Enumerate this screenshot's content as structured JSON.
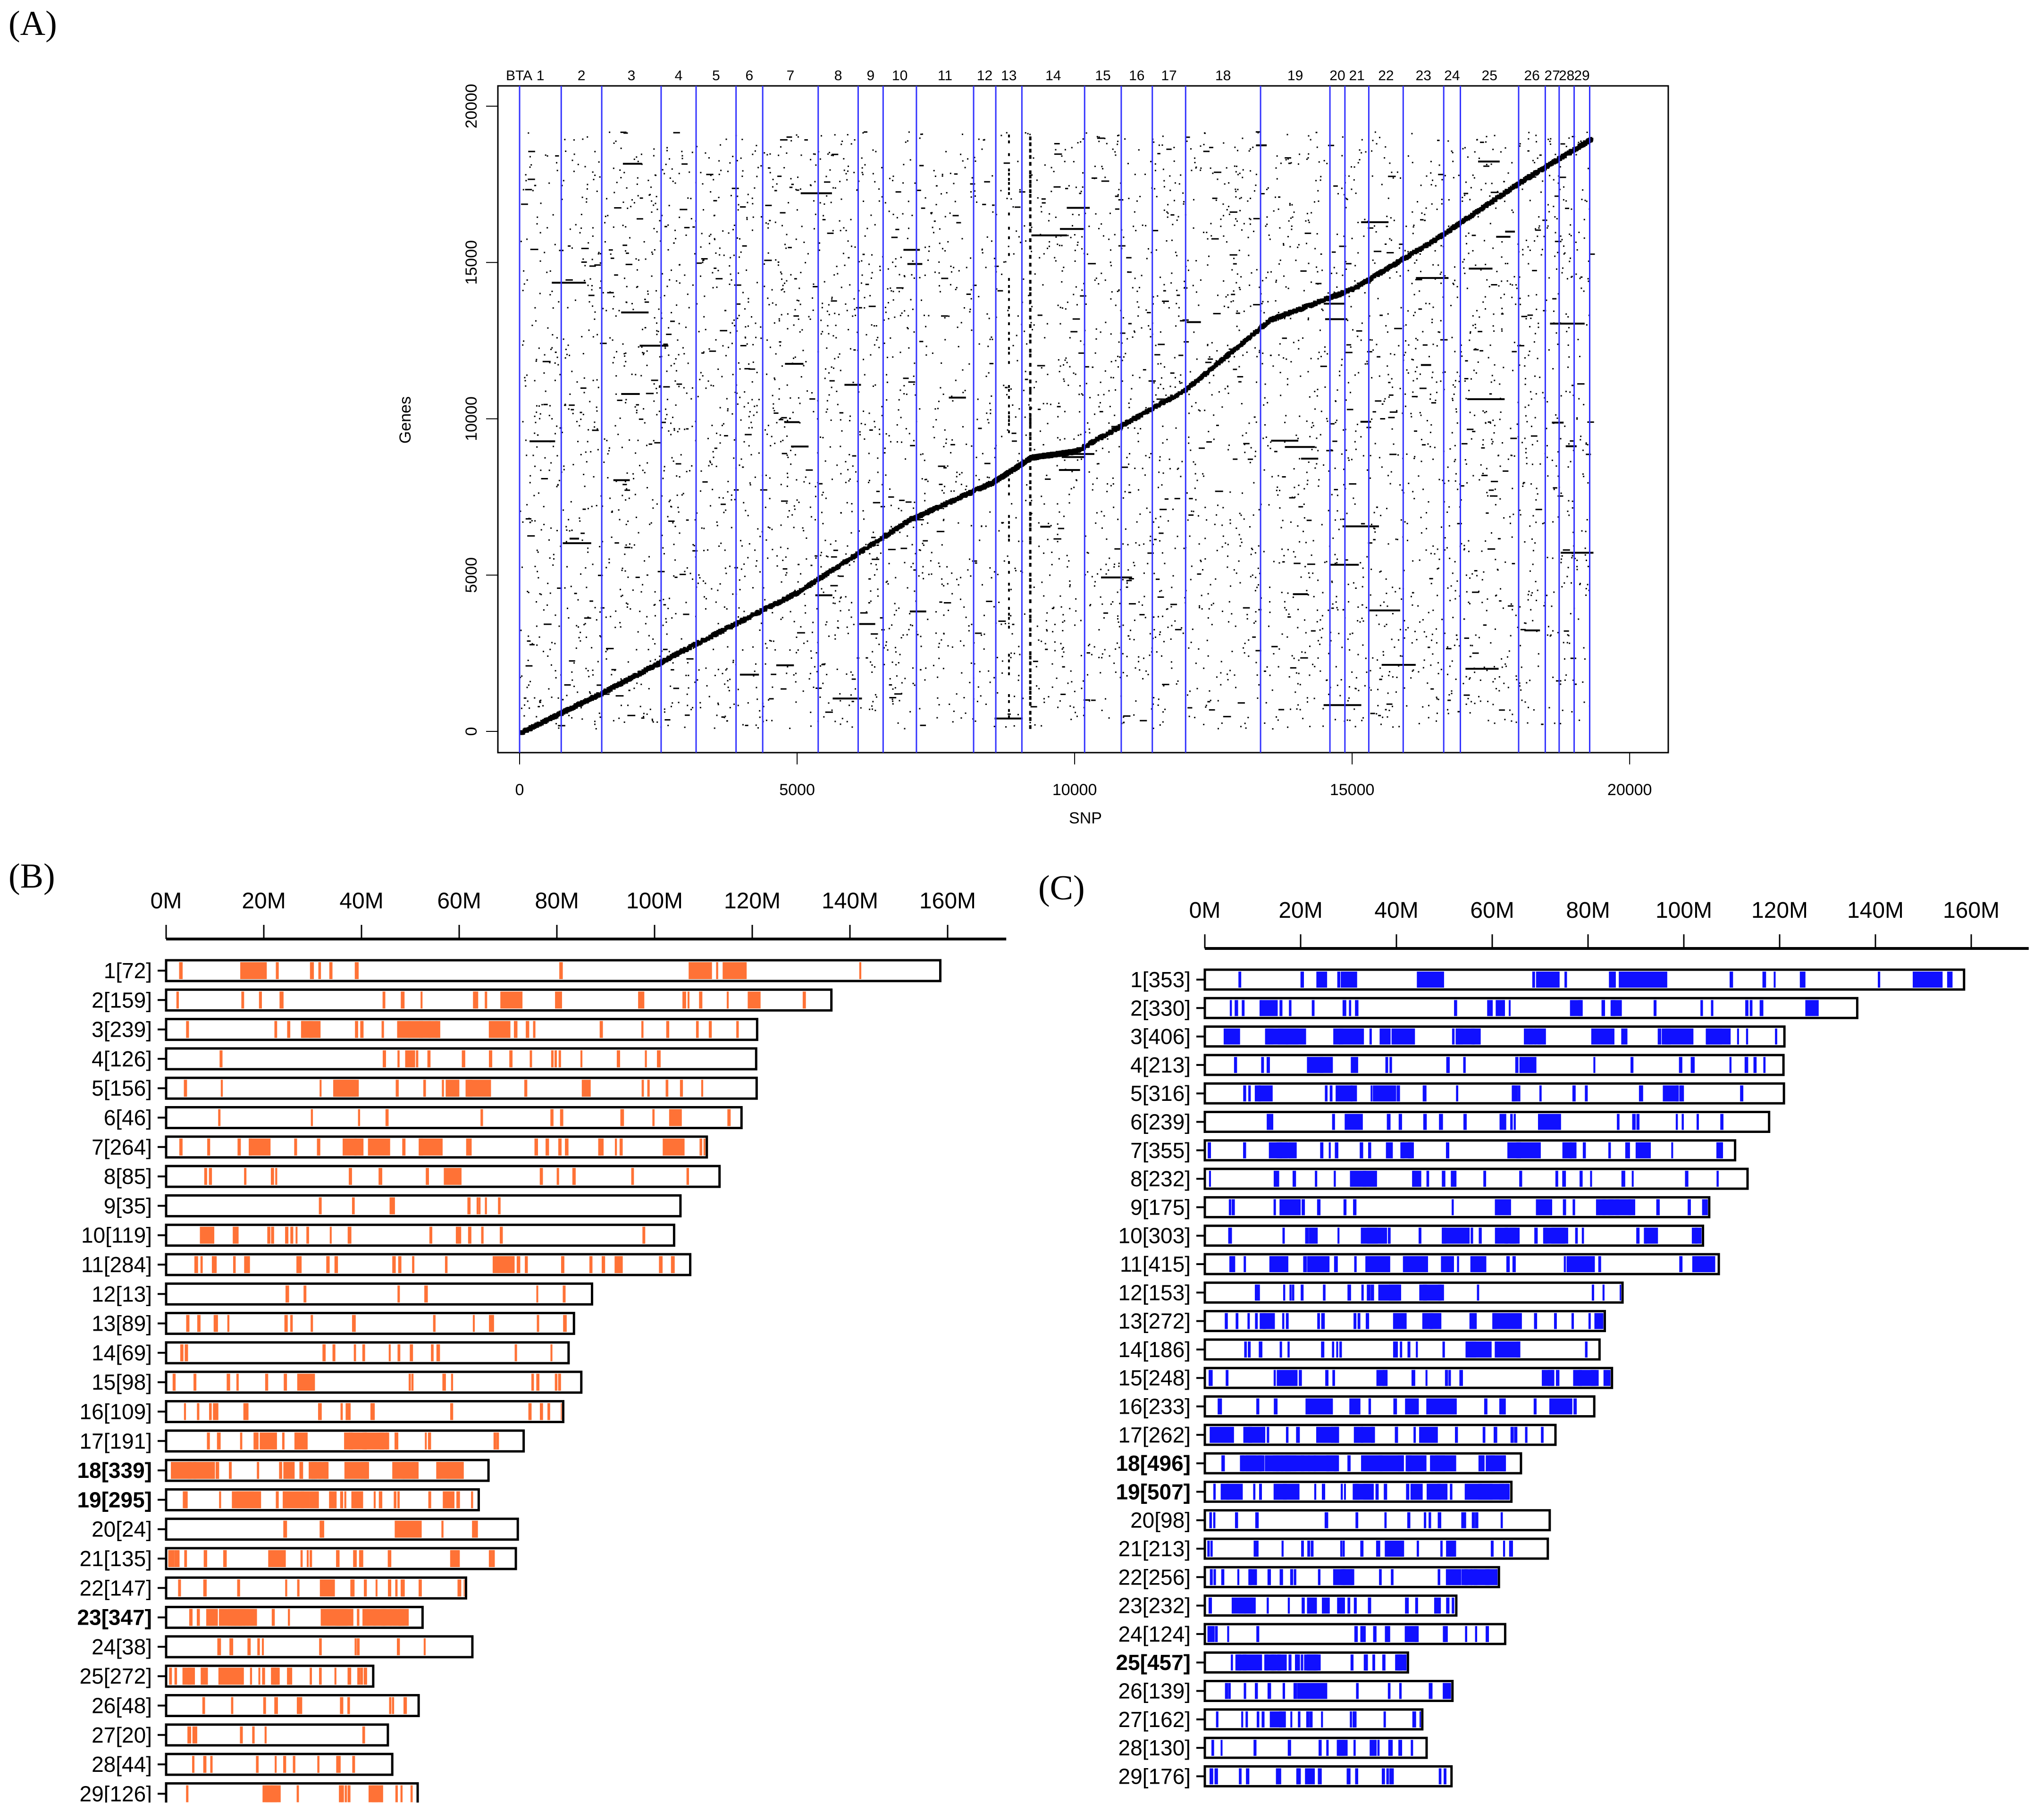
{
  "panels": {
    "A": {
      "label": "(A)"
    },
    "B": {
      "label": "(B)"
    },
    "C": {
      "label": "(C)"
    }
  },
  "colors": {
    "scatter_points": "#000000",
    "chrom_boundary": "#3333ff",
    "panel_b_marks": "#ff7236",
    "panel_c_marks": "#1010ff",
    "frame": "#000000"
  },
  "chart_data": [
    {
      "id": "A",
      "type": "scatter",
      "title": "",
      "xlabel": "SNP",
      "ylabel": "Genes",
      "xlim": [
        0,
        20000
      ],
      "ylim": [
        0,
        20000
      ],
      "x_ticks": [
        "0",
        "5000",
        "10000",
        "15000",
        "20000"
      ],
      "y_ticks": [
        "0",
        "5000",
        "10000",
        "15000",
        "20000"
      ],
      "grid": false,
      "top_axis_label": "BTA",
      "chromosome_labels": [
        "1",
        "2",
        "3",
        "4",
        "5",
        "6",
        "7",
        "8",
        "9",
        "10",
        "11",
        "12",
        "13",
        "14",
        "15",
        "16",
        "17",
        "18",
        "19",
        "20",
        "21",
        "22",
        "23",
        "24",
        "25",
        "26",
        "27",
        "28",
        "29"
      ],
      "chromosome_boundaries_snp": [
        0,
        750,
        1480,
        2550,
        3180,
        3900,
        4380,
        5380,
        6100,
        6550,
        7150,
        8180,
        8580,
        9050,
        10180,
        10840,
        11400,
        12000,
        13350,
        14600,
        14870,
        15300,
        15920,
        16650,
        16950,
        18000,
        18480,
        18730,
        19000,
        19280
      ],
      "diagonal_trend": [
        [
          0,
          0
        ],
        [
          1500,
          1300
        ],
        [
          3000,
          2700
        ],
        [
          5000,
          4500
        ],
        [
          7000,
          6800
        ],
        [
          8500,
          8000
        ],
        [
          9200,
          8800
        ],
        [
          10000,
          9000
        ],
        [
          12000,
          11000
        ],
        [
          13500,
          13200
        ],
        [
          15000,
          14200
        ],
        [
          16500,
          15800
        ],
        [
          18000,
          17600
        ],
        [
          19300,
          19000
        ]
      ],
      "description": "Genome-wide SNP vs gene position scatter with strong diagonal cis band and scattered off-diagonal trans associations; blue vertical lines separate 29 bovine autosomes (BTA)."
    },
    {
      "id": "B",
      "type": "bar",
      "orientation": "horizontal",
      "title": "",
      "x_ticks": [
        "0M",
        "20M",
        "40M",
        "60M",
        "80M",
        "100M",
        "120M",
        "140M",
        "160M"
      ],
      "xlim": [
        0,
        170
      ],
      "mark_color": "#ff7236",
      "categories": [
        "1[72]",
        "2[159]",
        "3[239]",
        "4[126]",
        "5[156]",
        "6[46]",
        "7[264]",
        "8[85]",
        "9[35]",
        "10[119]",
        "11[284]",
        "12[13]",
        "13[89]",
        "14[69]",
        "15[98]",
        "16[109]",
        "17[191]",
        "18[339]",
        "19[295]",
        "20[24]",
        "21[135]",
        "22[147]",
        "23[347]",
        "24[38]",
        "25[272]",
        "26[48]",
        "27[20]",
        "28[44]",
        "29[126]"
      ],
      "bold_categories": [
        "18[339]",
        "19[295]",
        "23[347]"
      ],
      "counts": [
        72,
        159,
        239,
        126,
        156,
        46,
        264,
        85,
        35,
        119,
        284,
        13,
        89,
        69,
        98,
        109,
        191,
        339,
        295,
        24,
        135,
        147,
        347,
        38,
        272,
        48,
        20,
        44,
        126
      ],
      "chrom_length_mb": [
        158.5,
        136.2,
        121.0,
        120.8,
        120.9,
        117.8,
        110.7,
        113.3,
        105.3,
        104.0,
        107.3,
        87.2,
        83.5,
        82.4,
        85.0,
        81.3,
        73.2,
        66.0,
        64.0,
        72.0,
        71.6,
        61.4,
        52.5,
        62.7,
        42.4,
        51.7,
        45.4,
        46.3,
        51.5
      ]
    },
    {
      "id": "C",
      "type": "bar",
      "orientation": "horizontal",
      "title": "",
      "x_ticks": [
        "0M",
        "20M",
        "40M",
        "60M",
        "80M",
        "100M",
        "120M",
        "140M",
        "160M"
      ],
      "xlim": [
        0,
        170
      ],
      "mark_color": "#1010ff",
      "categories": [
        "1[353]",
        "2[330]",
        "3[406]",
        "4[213]",
        "5[316]",
        "6[239]",
        "7[355]",
        "8[232]",
        "9[175]",
        "10[303]",
        "11[415]",
        "12[153]",
        "13[272]",
        "14[186]",
        "15[248]",
        "16[233]",
        "17[262]",
        "18[496]",
        "19[507]",
        "20[98]",
        "21[213]",
        "22[256]",
        "23[232]",
        "24[124]",
        "25[457]",
        "26[139]",
        "27[162]",
        "28[130]",
        "29[176]"
      ],
      "bold_categories": [
        "18[496]",
        "19[507]",
        "25[457]"
      ],
      "counts": [
        353,
        330,
        406,
        213,
        316,
        239,
        355,
        232,
        175,
        303,
        415,
        153,
        272,
        186,
        248,
        233,
        262,
        496,
        507,
        98,
        213,
        256,
        232,
        124,
        457,
        139,
        162,
        130,
        176
      ],
      "chrom_length_mb": [
        158.5,
        136.2,
        121.0,
        120.8,
        120.9,
        117.8,
        110.7,
        113.3,
        105.3,
        104.0,
        107.3,
        87.2,
        83.5,
        82.4,
        85.0,
        81.3,
        73.2,
        66.0,
        64.0,
        72.0,
        71.6,
        61.4,
        52.5,
        62.7,
        42.4,
        51.7,
        45.4,
        46.3,
        51.5
      ]
    }
  ]
}
